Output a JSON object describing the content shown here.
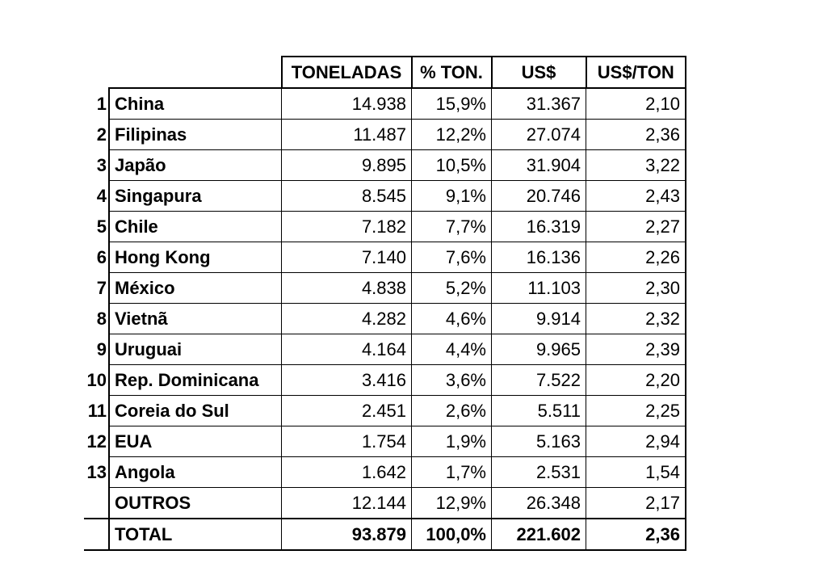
{
  "headers": [
    "TONELADAS",
    "% TON.",
    "US$",
    "US$/TON"
  ],
  "rows": [
    {
      "rank": "1",
      "country": "China",
      "ton": "14.938",
      "pct": "15,9%",
      "usd": "31.367",
      "usd_ton": "2,10"
    },
    {
      "rank": "2",
      "country": "Filipinas",
      "ton": "11.487",
      "pct": "12,2%",
      "usd": "27.074",
      "usd_ton": "2,36"
    },
    {
      "rank": "3",
      "country": "Japão",
      "ton": "9.895",
      "pct": "10,5%",
      "usd": "31.904",
      "usd_ton": "3,22"
    },
    {
      "rank": "4",
      "country": "Singapura",
      "ton": "8.545",
      "pct": "9,1%",
      "usd": "20.746",
      "usd_ton": "2,43"
    },
    {
      "rank": "5",
      "country": "Chile",
      "ton": "7.182",
      "pct": "7,7%",
      "usd": "16.319",
      "usd_ton": "2,27"
    },
    {
      "rank": "6",
      "country": "Hong Kong",
      "ton": "7.140",
      "pct": "7,6%",
      "usd": "16.136",
      "usd_ton": "2,26"
    },
    {
      "rank": "7",
      "country": "México",
      "ton": "4.838",
      "pct": "5,2%",
      "usd": "11.103",
      "usd_ton": "2,30"
    },
    {
      "rank": "8",
      "country": "Vietnã",
      "ton": "4.282",
      "pct": "4,6%",
      "usd": "9.914",
      "usd_ton": "2,32"
    },
    {
      "rank": "9",
      "country": "Uruguai",
      "ton": "4.164",
      "pct": "4,4%",
      "usd": "9.965",
      "usd_ton": "2,39"
    },
    {
      "rank": "10",
      "country": "Rep. Dominicana",
      "ton": "3.416",
      "pct": "3,6%",
      "usd": "7.522",
      "usd_ton": "2,20"
    },
    {
      "rank": "11",
      "country": "Coreia do Sul",
      "ton": "2.451",
      "pct": "2,6%",
      "usd": "5.511",
      "usd_ton": "2,25"
    },
    {
      "rank": "12",
      "country": "EUA",
      "ton": "1.754",
      "pct": "1,9%",
      "usd": "5.163",
      "usd_ton": "2,94"
    },
    {
      "rank": "13",
      "country": "Angola",
      "ton": "1.642",
      "pct": "1,7%",
      "usd": "2.531",
      "usd_ton": "1,54"
    },
    {
      "rank": "",
      "country": "OUTROS",
      "ton": "12.144",
      "pct": "12,9%",
      "usd": "26.348",
      "usd_ton": "2,17"
    }
  ],
  "total": {
    "label": "TOTAL",
    "ton": "93.879",
    "pct": "100,0%",
    "usd": "221.602",
    "usd_ton": "2,36"
  }
}
